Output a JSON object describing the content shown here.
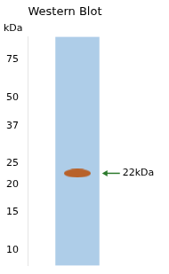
{
  "chart_data": {
    "type": "gel",
    "title": "Western Blot",
    "y_label": "kDa",
    "log": "y",
    "ylim": [
      8.5,
      95
    ],
    "yticks": [
      10,
      15,
      20,
      25,
      37,
      50,
      75
    ],
    "values": [
      22.5
    ],
    "color": "#b8622a",
    "annotations": [
      {
        "text": "22kDa",
        "y": 22.5,
        "color": "#2d7a2d"
      }
    ],
    "grid": false,
    "tick_labels": "y"
  }
}
